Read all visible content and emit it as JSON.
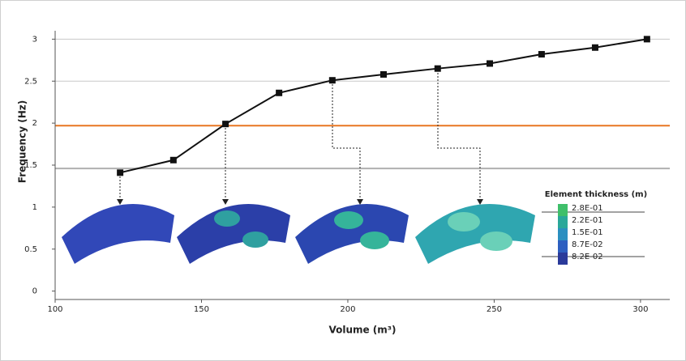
{
  "chart_data": {
    "type": "line",
    "x_label": "Volume (m³)",
    "y_label": "Frequency (Hz)",
    "x": [
      122.2,
      140.4,
      158.2,
      176.5,
      194.7,
      212.2,
      230.7,
      248.5,
      266.2,
      284.5,
      302.2
    ],
    "series": [
      {
        "color": "#111111",
        "values": [
          1.41,
          1.56,
          1.99,
          2.36,
          2.51,
          2.58,
          2.65,
          2.71,
          2.82,
          2.9,
          3.0
        ]
      }
    ],
    "xlim": [
      100,
      310
    ],
    "ylim": [
      -0.1,
      3.1
    ],
    "xticks": [
      100,
      150,
      200,
      250,
      300
    ],
    "yticks": [
      0,
      0.5,
      1,
      1.5,
      2,
      2.5,
      3
    ],
    "grid_yticks": [
      2.5,
      3
    ],
    "reference_lines": [
      {
        "value": 1.97,
        "color": "#e87722"
      },
      {
        "value": 1.46,
        "color": "#b0b0b0"
      }
    ],
    "colorbar": {
      "title": "Element thickness (m)",
      "labels": [
        "2.8E-01",
        "2.2E-01",
        "1.5E-01",
        "8.7E-02",
        "8.2E-02"
      ],
      "colors": [
        "#3fbf6a",
        "#2aa89a",
        "#2b8fc0",
        "#2d5fc0",
        "#2a3a9a"
      ]
    }
  }
}
